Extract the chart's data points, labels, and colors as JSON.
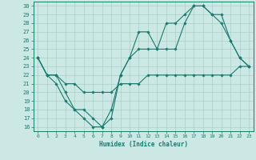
{
  "xlabel": "Humidex (Indice chaleur)",
  "bg_color": "#cce8e4",
  "line_color": "#1a7a6e",
  "grid_color": "#aacfcb",
  "xlim": [
    -0.5,
    23.5
  ],
  "ylim": [
    15.5,
    30.5
  ],
  "yticks": [
    16,
    17,
    18,
    19,
    20,
    21,
    22,
    23,
    24,
    25,
    26,
    27,
    28,
    29,
    30
  ],
  "xticks": [
    0,
    1,
    2,
    3,
    4,
    5,
    6,
    7,
    8,
    9,
    10,
    11,
    12,
    13,
    14,
    15,
    16,
    17,
    18,
    19,
    20,
    21,
    22,
    23
  ],
  "series": [
    {
      "x": [
        0,
        1,
        2,
        3,
        4,
        5,
        6,
        7,
        8,
        9,
        10,
        11,
        12,
        13,
        14,
        15,
        16,
        17,
        18,
        19,
        20,
        21,
        22,
        23
      ],
      "y": [
        24,
        22,
        22,
        20,
        18,
        18,
        17,
        16,
        18,
        22,
        24,
        25,
        25,
        25,
        28,
        28,
        29,
        30,
        30,
        29,
        28,
        26,
        24,
        23
      ]
    },
    {
      "x": [
        0,
        1,
        2,
        3,
        4,
        5,
        6,
        7,
        8,
        9,
        10,
        11,
        12,
        13,
        14,
        15,
        16,
        17,
        18,
        19,
        20,
        21,
        22,
        23
      ],
      "y": [
        24,
        22,
        21,
        19,
        18,
        17,
        16,
        16,
        17,
        22,
        24,
        27,
        27,
        25,
        25,
        25,
        28,
        30,
        30,
        29,
        29,
        26,
        24,
        23
      ]
    },
    {
      "x": [
        0,
        1,
        2,
        3,
        4,
        5,
        6,
        7,
        8,
        9,
        10,
        11,
        12,
        13,
        14,
        15,
        16,
        17,
        18,
        19,
        20,
        21,
        22,
        23
      ],
      "y": [
        24,
        22,
        22,
        21,
        21,
        20,
        20,
        20,
        20,
        21,
        21,
        21,
        22,
        22,
        22,
        22,
        22,
        22,
        22,
        22,
        22,
        22,
        23,
        23
      ]
    }
  ]
}
